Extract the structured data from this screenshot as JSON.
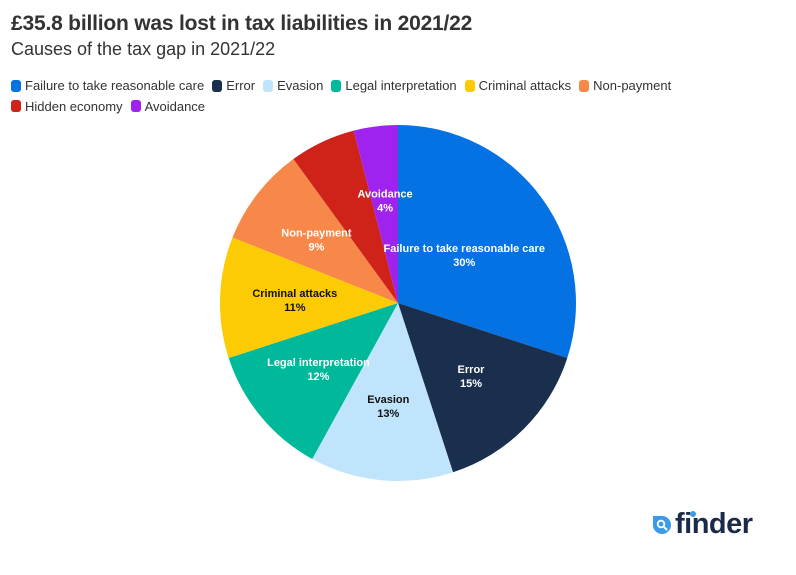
{
  "header": {
    "title": "£35.8 billion was lost in tax liabilities in 2021/22",
    "subtitle": "Causes of the tax gap in 2021/22"
  },
  "chart_data": {
    "type": "pie",
    "title": "£35.8 billion was lost in tax liabilities in 2021/22",
    "subtitle": "Causes of the tax gap in 2021/22",
    "legend_position": "top-left",
    "start_angle": "12 o'clock, clockwise",
    "slices": [
      {
        "label": "Failure to take reasonable care",
        "value": 30,
        "display": "30%",
        "color": "#0572e3",
        "text_color": "#ffffff",
        "show_label": true
      },
      {
        "label": "Error",
        "value": 15,
        "display": "15%",
        "color": "#1a2f4d",
        "text_color": "#ffffff",
        "show_label": true
      },
      {
        "label": "Evasion",
        "value": 13,
        "display": "13%",
        "color": "#bfe4fb",
        "text_color": "#111111",
        "show_label": true
      },
      {
        "label": "Legal interpretation",
        "value": 12,
        "display": "12%",
        "color": "#00b99a",
        "text_color": "#ffffff",
        "show_label": true
      },
      {
        "label": "Criminal attacks",
        "value": 11,
        "display": "11%",
        "color": "#fdcb04",
        "text_color": "#111111",
        "show_label": true
      },
      {
        "label": "Non-payment",
        "value": 9,
        "display": "9%",
        "color": "#f8884a",
        "text_color": "#ffffff",
        "show_label": true
      },
      {
        "label": "Hidden economy",
        "value": 6,
        "display": "6%",
        "color": "#cf2319",
        "text_color": "#ffffff",
        "show_label": false
      },
      {
        "label": "Avoidance",
        "value": 4,
        "display": "4%",
        "color": "#a022ee",
        "text_color": "#ffffff",
        "show_label": true
      }
    ]
  },
  "branding": {
    "logo_text": "finder",
    "logo_icon": "search-magnifier-icon"
  }
}
